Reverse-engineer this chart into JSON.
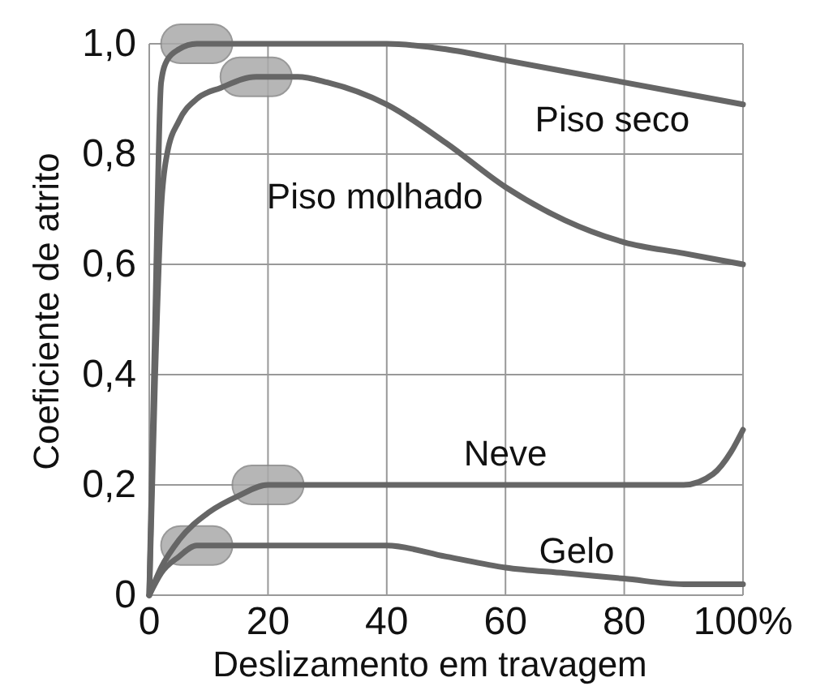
{
  "chart_data": {
    "type": "line",
    "xlabel": "Deslizamento em travagem",
    "ylabel": "Coeficiente de atrito",
    "xlim": [
      0,
      100
    ],
    "ylim": [
      0,
      1
    ],
    "xticks": [
      0,
      20,
      40,
      60,
      80,
      {
        "value": 100,
        "label": "100%"
      }
    ],
    "yticks": [
      {
        "value": 0,
        "label": "0"
      },
      {
        "value": 0.2,
        "label": "0,2"
      },
      {
        "value": 0.4,
        "label": "0,4"
      },
      {
        "value": 0.6,
        "label": "0,6"
      },
      {
        "value": 0.8,
        "label": "0,8"
      },
      {
        "value": 1,
        "label": "1,0"
      }
    ],
    "grid": true,
    "marker": "none",
    "line_style": "solid",
    "series": [
      {
        "name": "Piso seco",
        "color": "#666666",
        "x": [
          0,
          1,
          2,
          3,
          5,
          8,
          20,
          40,
          50,
          60,
          80,
          100
        ],
        "values": [
          0,
          0.5,
          0.93,
          0.97,
          0.99,
          1.0,
          1.0,
          1.0,
          0.99,
          0.97,
          0.93,
          0.89
        ]
      },
      {
        "name": "Piso molhado",
        "color": "#666666",
        "x": [
          0,
          1,
          2,
          3,
          5,
          8,
          12,
          18,
          25,
          30,
          40,
          50,
          60,
          70,
          80,
          90,
          100
        ],
        "values": [
          0,
          0.4,
          0.7,
          0.8,
          0.86,
          0.9,
          0.92,
          0.94,
          0.94,
          0.93,
          0.89,
          0.82,
          0.74,
          0.68,
          0.64,
          0.62,
          0.6
        ]
      },
      {
        "name": "Neve",
        "color": "#666666",
        "x": [
          0,
          2,
          5,
          10,
          15,
          20,
          40,
          60,
          80,
          90,
          95,
          98,
          100
        ],
        "values": [
          0,
          0.05,
          0.1,
          0.15,
          0.18,
          0.2,
          0.2,
          0.2,
          0.2,
          0.2,
          0.22,
          0.26,
          0.3
        ]
      },
      {
        "name": "Gelo",
        "color": "#666666",
        "x": [
          0,
          2,
          5,
          8,
          15,
          30,
          40,
          50,
          60,
          70,
          80,
          90,
          100
        ],
        "values": [
          0,
          0.04,
          0.07,
          0.09,
          0.09,
          0.09,
          0.09,
          0.07,
          0.05,
          0.04,
          0.03,
          0.02,
          0.02
        ]
      }
    ]
  }
}
